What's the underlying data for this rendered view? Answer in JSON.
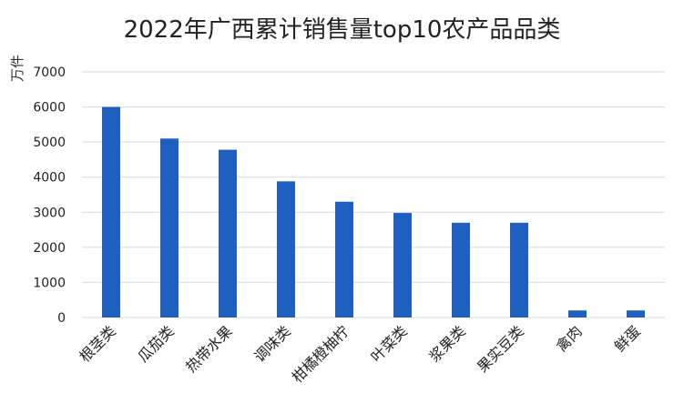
{
  "chart_data": {
    "type": "bar",
    "title": "2022年广西累计销售量top10农产品品类",
    "ylabel": "万件",
    "xlabel": "",
    "categories": [
      "根茎类",
      "瓜茄类",
      "热带水果",
      "调味类",
      "柑橘橙柚柠",
      "叶菜类",
      "浆果类",
      "果实豆类",
      "禽肉",
      "鲜蛋"
    ],
    "values": [
      6000,
      5100,
      4780,
      3880,
      3300,
      2980,
      2700,
      2700,
      200,
      200
    ],
    "ylim": [
      0,
      7000
    ],
    "yticks": [
      0,
      1000,
      2000,
      3000,
      4000,
      5000,
      6000,
      7000
    ],
    "grid": true,
    "bar_color": "#1f5fbf",
    "grid_color": "#d9d9d9"
  }
}
